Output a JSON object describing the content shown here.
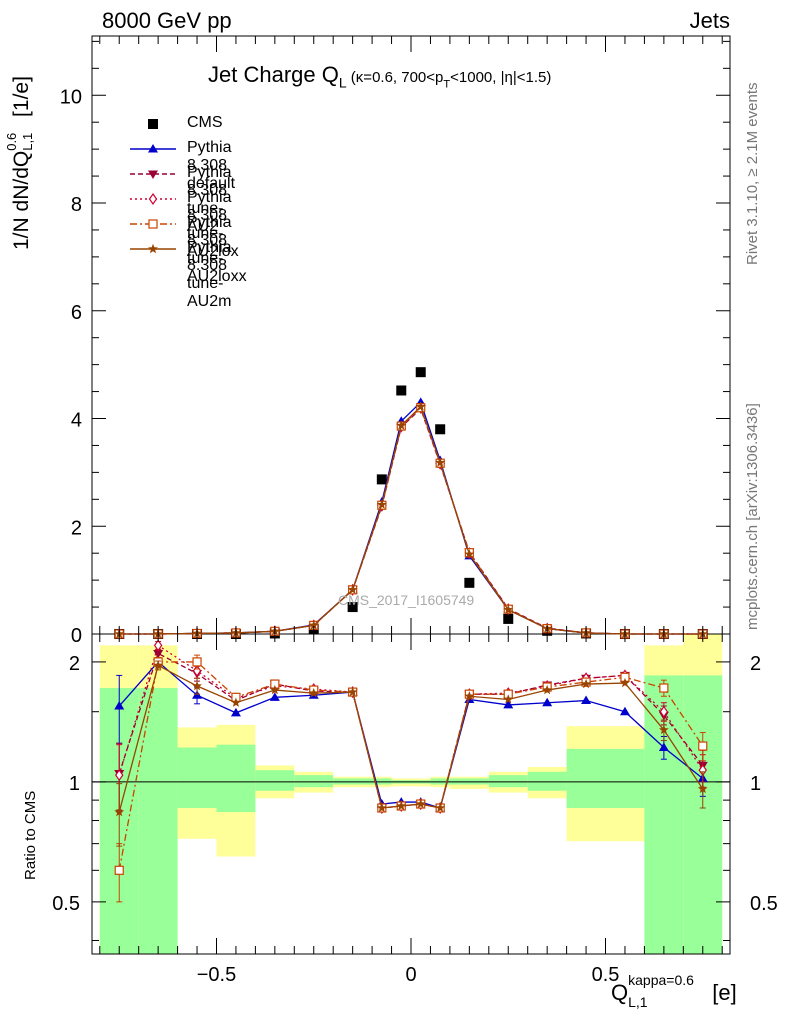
{
  "header": {
    "left": "8000 GeV pp",
    "right": "Jets",
    "side_rivet": "Rivet 3.1.10, ≥ 2.1M events",
    "side_mcplots": "mcplots.cern.ch [arXiv:1306.3436]"
  },
  "title_main": "Jet Charge Q",
  "title_sub": "L",
  "title_cut": " (κ=0.6, 700<p",
  "title_cut_sub": "T",
  "title_cut_end": "<1000, |η|<1.5)",
  "ylabel": "1/N dN/dQ",
  "ylabel_sup": "0.6",
  "ylabel_sub": "L,1",
  "ylabel_unit": " [1/e]",
  "ratio_label": "Ratio to CMS",
  "xlabel": "Q",
  "xlabel_sup": "kappa=0.6",
  "xlabel_sub": "L,1",
  "xlabel_unit": " [e]",
  "watermark": "CMS_2017_I1605749",
  "legend": [
    {
      "label": "CMS",
      "style": "data",
      "color": "#000000"
    },
    {
      "label": "Pythia 8.308 default",
      "style": "tri-up",
      "color": "#0000cc"
    },
    {
      "label": "Pythia 8.308 tune-AU2",
      "style": "tri-down",
      "color": "#990033"
    },
    {
      "label": "Pythia 8.308 tune-AU2lox",
      "style": "diamond",
      "color": "#cc0033"
    },
    {
      "label": "Pythia 8.308 tune-AU2loxx",
      "style": "square",
      "color": "#cc4400"
    },
    {
      "label": "Pythia 8.308 tune-AU2m",
      "style": "star",
      "color": "#994400"
    }
  ],
  "chart_data": [
    {
      "type": "scatter",
      "panel": "main",
      "title": "Jet Charge Q_L (κ=0.6, 700<p_T<1000, |η|<1.5)",
      "ylabel": "1/N dN/dQ_{L,1}^{0.6} [1/e]",
      "xlim": [
        -0.82,
        0.82
      ],
      "ylim": [
        0,
        11.1
      ],
      "yticks": [
        0,
        2,
        4,
        6,
        8,
        10
      ],
      "xticks": [
        -0.5,
        0,
        0.5
      ],
      "x": [
        -0.75,
        -0.65,
        -0.55,
        -0.45,
        -0.35,
        -0.25,
        -0.15,
        -0.075,
        -0.025,
        0.025,
        0.075,
        0.15,
        0.25,
        0.35,
        0.45,
        0.55,
        0.65,
        0.75
      ],
      "series": [
        {
          "name": "CMS",
          "values": [
            0.0,
            0.0,
            0.0,
            0.0,
            0.01,
            0.09,
            0.5,
            2.87,
            4.52,
            4.86,
            3.8,
            0.95,
            0.28,
            0.06,
            0.01,
            0.0,
            0.0,
            0.0
          ]
        },
        {
          "name": "Pythia 8.308 default",
          "values": [
            0.0,
            0.0,
            0.01,
            0.02,
            0.05,
            0.17,
            0.82,
            2.45,
            3.95,
            4.3,
            3.22,
            1.45,
            0.45,
            0.1,
            0.02,
            0.0,
            0.0,
            0.0
          ]
        },
        {
          "name": "Pythia 8.308 tune-AU2",
          "values": [
            0.0,
            0.0,
            0.01,
            0.02,
            0.05,
            0.16,
            0.82,
            2.37,
            3.84,
            4.18,
            3.15,
            1.52,
            0.47,
            0.11,
            0.02,
            0.0,
            0.0,
            0.0
          ]
        },
        {
          "name": "Pythia 8.308 tune-AU2lox",
          "values": [
            0.0,
            0.0,
            0.01,
            0.02,
            0.05,
            0.16,
            0.82,
            2.38,
            3.85,
            4.2,
            3.16,
            1.5,
            0.46,
            0.1,
            0.02,
            0.0,
            0.0,
            0.0
          ]
        },
        {
          "name": "Pythia 8.308 tune-AU2loxx",
          "values": [
            0.0,
            0.0,
            0.01,
            0.02,
            0.05,
            0.16,
            0.82,
            2.39,
            3.86,
            4.2,
            3.17,
            1.51,
            0.46,
            0.1,
            0.02,
            0.0,
            0.0,
            0.0
          ]
        },
        {
          "name": "Pythia 8.308 tune-AU2m",
          "values": [
            0.0,
            0.0,
            0.01,
            0.02,
            0.05,
            0.16,
            0.82,
            2.4,
            3.87,
            4.22,
            3.18,
            1.48,
            0.45,
            0.1,
            0.02,
            0.0,
            0.0,
            0.0
          ]
        }
      ]
    },
    {
      "type": "line",
      "panel": "ratio",
      "ylabel": "Ratio to CMS",
      "xlabel": "Q_{L,1}^{kappa=0.6} [e]",
      "xlim": [
        -0.82,
        0.82
      ],
      "ylim": [
        0.37,
        2.35
      ],
      "log_scale_y": true,
      "yticks": [
        0.5,
        1,
        2
      ],
      "xticks": [
        -0.5,
        0,
        0.5
      ],
      "x": [
        -0.75,
        -0.65,
        -0.55,
        -0.45,
        -0.35,
        -0.25,
        -0.15,
        -0.075,
        -0.025,
        0.025,
        0.075,
        0.15,
        0.25,
        0.35,
        0.45,
        0.55,
        0.65,
        0.75
      ],
      "band_edges": [
        -0.8,
        -0.7,
        -0.6,
        -0.5,
        -0.4,
        -0.3,
        -0.2,
        -0.1,
        -0.05,
        0.0,
        0.05,
        0.1,
        0.2,
        0.3,
        0.4,
        0.5,
        0.6,
        0.7,
        0.8
      ],
      "stat_band": {
        "lo": [
          0.37,
          0.37,
          0.86,
          0.84,
          0.95,
          0.97,
          0.985,
          0.985,
          0.99,
          0.99,
          0.985,
          0.985,
          0.97,
          0.95,
          0.86,
          0.86,
          0.37,
          0.37
        ],
        "hi": [
          1.72,
          1.72,
          1.22,
          1.24,
          1.07,
          1.04,
          1.02,
          1.02,
          1.01,
          1.01,
          1.02,
          1.02,
          1.04,
          1.06,
          1.21,
          1.21,
          1.85,
          1.85
        ]
      },
      "syst_band": {
        "lo": [
          0.37,
          0.37,
          0.72,
          0.65,
          0.91,
          0.94,
          0.97,
          0.97,
          0.975,
          0.975,
          0.97,
          0.96,
          0.94,
          0.91,
          0.71,
          0.71,
          0.37,
          0.37
        ],
        "hi": [
          2.2,
          2.2,
          1.37,
          1.39,
          1.1,
          1.06,
          1.03,
          1.03,
          1.02,
          1.02,
          1.03,
          1.03,
          1.06,
          1.09,
          1.38,
          1.38,
          2.2,
          2.35
        ]
      },
      "series": [
        {
          "name": "Pythia 8.308 default",
          "values": [
            1.55,
            2.0,
            1.65,
            1.49,
            1.63,
            1.65,
            1.68,
            0.88,
            0.89,
            0.89,
            0.86,
            1.61,
            1.56,
            1.58,
            1.6,
            1.5,
            1.22,
            1.02
          ],
          "errors": [
            0.3,
            0.05,
            0.08,
            0.02,
            0.01,
            0.01,
            0.01,
            0.01,
            0.01,
            0.01,
            0.01,
            0.01,
            0.01,
            0.01,
            0.01,
            0.02,
            0.08,
            0.1
          ]
        },
        {
          "name": "Pythia 8.308 tune-AU2",
          "values": [
            1.05,
            2.1,
            1.87,
            1.6,
            1.76,
            1.69,
            1.68,
            0.86,
            0.87,
            0.88,
            0.86,
            1.66,
            1.66,
            1.75,
            1.82,
            1.85,
            1.47,
            1.1
          ],
          "errors": [
            0.2,
            0.05,
            0.08,
            0.02,
            0.01,
            0.01,
            0.01,
            0.01,
            0.01,
            0.01,
            0.01,
            0.01,
            0.01,
            0.01,
            0.01,
            0.02,
            0.08,
            0.1
          ]
        },
        {
          "name": "Pythia 8.308 tune-AU2lox",
          "values": [
            1.04,
            2.2,
            1.9,
            1.62,
            1.74,
            1.71,
            1.68,
            0.86,
            0.87,
            0.88,
            0.86,
            1.66,
            1.67,
            1.74,
            1.82,
            1.85,
            1.5,
            1.07
          ],
          "errors": [
            0.2,
            0.05,
            0.08,
            0.02,
            0.01,
            0.01,
            0.01,
            0.01,
            0.01,
            0.01,
            0.01,
            0.01,
            0.01,
            0.01,
            0.01,
            0.02,
            0.08,
            0.1
          ]
        },
        {
          "name": "Pythia 8.308 tune-AU2loxx",
          "values": [
            0.6,
            2.0,
            2.0,
            1.63,
            1.76,
            1.7,
            1.68,
            0.86,
            0.87,
            0.88,
            0.86,
            1.66,
            1.66,
            1.73,
            1.78,
            1.83,
            1.72,
            1.23
          ],
          "errors": [
            0.1,
            0.05,
            0.08,
            0.02,
            0.01,
            0.01,
            0.01,
            0.01,
            0.01,
            0.01,
            0.01,
            0.01,
            0.01,
            0.01,
            0.01,
            0.02,
            0.08,
            0.1
          ]
        },
        {
          "name": "Pythia 8.308 tune-AU2m",
          "values": [
            0.84,
            1.96,
            1.74,
            1.58,
            1.7,
            1.67,
            1.68,
            0.86,
            0.87,
            0.88,
            0.86,
            1.64,
            1.61,
            1.7,
            1.76,
            1.77,
            1.35,
            0.96
          ],
          "errors": [
            0.15,
            0.05,
            0.08,
            0.02,
            0.01,
            0.01,
            0.01,
            0.01,
            0.01,
            0.01,
            0.01,
            0.01,
            0.01,
            0.01,
            0.01,
            0.02,
            0.08,
            0.1
          ]
        }
      ]
    }
  ]
}
